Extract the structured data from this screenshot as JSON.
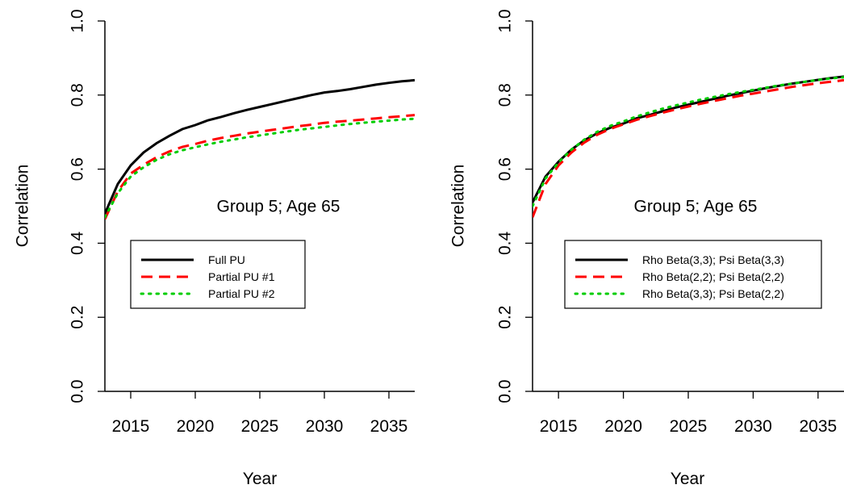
{
  "colors": {
    "full": "#000000",
    "partial1": "#ff0000",
    "partial2": "#00cd00"
  },
  "chart_data": [
    {
      "type": "line",
      "title": "",
      "annotation": "Group 5; Age 65",
      "xlabel": "Year",
      "ylabel": "Correlation",
      "xlim": [
        2013,
        2037
      ],
      "ylim": [
        0.0,
        1.0
      ],
      "xticks": [
        "2015",
        "2020",
        "2025",
        "2030",
        "2035"
      ],
      "yticks": [
        "0.0",
        "0.2",
        "0.4",
        "0.6",
        "0.8",
        "1.0"
      ],
      "legend_position": "left",
      "x": [
        2013,
        2014,
        2015,
        2016,
        2017,
        2018,
        2019,
        2020,
        2021,
        2022,
        2023,
        2024,
        2025,
        2026,
        2027,
        2028,
        2029,
        2030,
        2031,
        2032,
        2033,
        2034,
        2035,
        2036,
        2037
      ],
      "series": [
        {
          "name": "Full PU",
          "style": "solid",
          "color": "#000000",
          "values": [
            0.48,
            0.56,
            0.61,
            0.645,
            0.67,
            0.69,
            0.708,
            0.719,
            0.732,
            0.741,
            0.751,
            0.76,
            0.768,
            0.776,
            0.784,
            0.792,
            0.8,
            0.807,
            0.811,
            0.816,
            0.822,
            0.828,
            0.833,
            0.837,
            0.84
          ]
        },
        {
          "name": "Partial PU #1",
          "style": "dashed",
          "color": "#ff0000",
          "values": [
            0.465,
            0.54,
            0.588,
            0.612,
            0.632,
            0.648,
            0.66,
            0.668,
            0.677,
            0.684,
            0.69,
            0.696,
            0.701,
            0.706,
            0.711,
            0.716,
            0.72,
            0.725,
            0.728,
            0.731,
            0.734,
            0.737,
            0.74,
            0.743,
            0.746
          ]
        },
        {
          "name": "Partial PU #2",
          "style": "dotted",
          "color": "#00cd00",
          "values": [
            0.47,
            0.535,
            0.58,
            0.605,
            0.625,
            0.64,
            0.651,
            0.659,
            0.667,
            0.674,
            0.68,
            0.686,
            0.691,
            0.696,
            0.701,
            0.706,
            0.71,
            0.714,
            0.718,
            0.722,
            0.725,
            0.728,
            0.731,
            0.734,
            0.736
          ]
        }
      ]
    },
    {
      "type": "line",
      "title": "",
      "annotation": "Group 5; Age 65",
      "xlabel": "Year",
      "ylabel": "Correlation",
      "xlim": [
        2013,
        2037
      ],
      "ylim": [
        0.0,
        1.0
      ],
      "xticks": [
        "2015",
        "2020",
        "2025",
        "2030",
        "2035"
      ],
      "yticks": [
        "0.0",
        "0.2",
        "0.4",
        "0.6",
        "0.8",
        "1.0"
      ],
      "legend_position": "left",
      "x": [
        2013,
        2014,
        2015,
        2016,
        2017,
        2018,
        2019,
        2020,
        2021,
        2022,
        2023,
        2024,
        2025,
        2026,
        2027,
        2028,
        2029,
        2030,
        2031,
        2032,
        2033,
        2034,
        2035,
        2036,
        2037
      ],
      "series": [
        {
          "name": "Rho Beta(3,3); Psi Beta(3,3)",
          "style": "solid",
          "color": "#000000",
          "values": [
            0.51,
            0.58,
            0.62,
            0.653,
            0.678,
            0.697,
            0.712,
            0.723,
            0.737,
            0.746,
            0.756,
            0.766,
            0.774,
            0.782,
            0.79,
            0.798,
            0.805,
            0.812,
            0.819,
            0.825,
            0.831,
            0.836,
            0.841,
            0.846,
            0.85
          ]
        },
        {
          "name": "Rho Beta(2,2); Psi Beta(2,2)",
          "style": "dashed",
          "color": "#ff0000",
          "values": [
            0.47,
            0.56,
            0.61,
            0.645,
            0.672,
            0.693,
            0.709,
            0.721,
            0.733,
            0.743,
            0.752,
            0.761,
            0.769,
            0.777,
            0.784,
            0.791,
            0.798,
            0.804,
            0.81,
            0.816,
            0.822,
            0.827,
            0.832,
            0.836,
            0.84
          ]
        },
        {
          "name": "Rho Beta(3,3); Psi Beta(2,2)",
          "style": "dotted",
          "color": "#00cd00",
          "values": [
            0.5,
            0.575,
            0.618,
            0.653,
            0.68,
            0.701,
            0.717,
            0.729,
            0.742,
            0.753,
            0.763,
            0.772,
            0.78,
            0.788,
            0.795,
            0.802,
            0.808,
            0.814,
            0.82,
            0.826,
            0.831,
            0.836,
            0.841,
            0.845,
            0.848
          ]
        }
      ]
    }
  ]
}
